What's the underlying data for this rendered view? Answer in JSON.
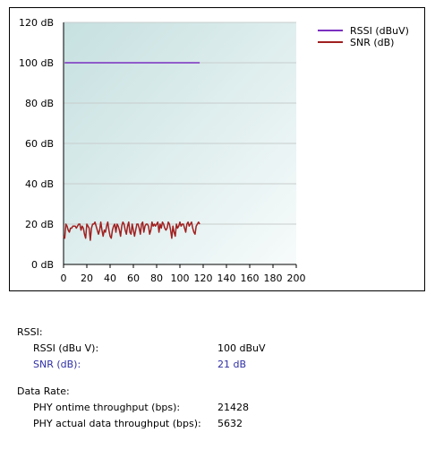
{
  "chart_data": {
    "type": "line",
    "title": "",
    "xlabel": "",
    "ylabel": "",
    "xlim": [
      0,
      200
    ],
    "ylim": [
      0,
      120
    ],
    "x_ticks": [
      "0",
      "20",
      "40",
      "60",
      "80",
      "100",
      "120",
      "140",
      "160",
      "180",
      "200"
    ],
    "y_ticks": [
      "0 dB",
      "20 dB",
      "40 dB",
      "60 dB",
      "80 dB",
      "100 dB",
      "120 dB"
    ],
    "grid": true,
    "legend_position": "top-right",
    "series": [
      {
        "name": "RSSI (dBuV)",
        "color": "#7a2fc0",
        "x": [
          1,
          117
        ],
        "y": [
          100,
          100
        ]
      },
      {
        "name": "SNR (dB)",
        "color": "#a02020",
        "x": [
          0,
          1,
          2,
          3,
          4,
          5,
          6,
          7,
          8,
          9,
          10,
          11,
          12,
          13,
          14,
          15,
          16,
          17,
          18,
          19,
          20,
          21,
          22,
          23,
          24,
          25,
          26,
          27,
          28,
          29,
          30,
          31,
          32,
          33,
          34,
          35,
          36,
          37,
          38,
          39,
          40,
          41,
          42,
          43,
          44,
          45,
          46,
          47,
          48,
          49,
          50,
          51,
          52,
          53,
          54,
          55,
          56,
          57,
          58,
          59,
          60,
          61,
          62,
          63,
          64,
          65,
          66,
          67,
          68,
          69,
          70,
          71,
          72,
          73,
          74,
          75,
          76,
          77,
          78,
          79,
          80,
          81,
          82,
          83,
          84,
          85,
          86,
          87,
          88,
          89,
          90,
          91,
          92,
          93,
          94,
          95,
          96,
          97,
          98,
          99,
          100,
          101,
          102,
          103,
          104,
          105,
          106,
          107,
          108,
          109,
          110,
          111,
          112,
          113,
          114,
          115,
          116,
          117
        ],
        "y": [
          14,
          13,
          20,
          19,
          17,
          16,
          18,
          18,
          19,
          19,
          19,
          18,
          19,
          20,
          20,
          17,
          19,
          18,
          15,
          13,
          20,
          19,
          18,
          12,
          18,
          20,
          20,
          21,
          19,
          17,
          15,
          17,
          21,
          17,
          14,
          17,
          16,
          19,
          21,
          17,
          14,
          13,
          17,
          19,
          20,
          16,
          20,
          19,
          17,
          14,
          19,
          21,
          20,
          17,
          15,
          19,
          21,
          16,
          15,
          20,
          17,
          14,
          17,
          20,
          20,
          18,
          15,
          20,
          21,
          16,
          19,
          20,
          20,
          19,
          15,
          17,
          21,
          19,
          20,
          19,
          20,
          21,
          16,
          20,
          18,
          21,
          20,
          18,
          17,
          18,
          21,
          20,
          17,
          13,
          19,
          16,
          14,
          20,
          18,
          19,
          21,
          19,
          20,
          20,
          18,
          16,
          20,
          21,
          19,
          20,
          21,
          18,
          16,
          15,
          19,
          20,
          21,
          20
        ]
      }
    ]
  },
  "colors": {
    "plot_bg_light": "#f7fbfb",
    "plot_bg_dark": "#c6e0e0",
    "grid": "#c8cccc"
  },
  "info": {
    "rssi_heading": "RSSI:",
    "rssi_label": "RSSI (dBu V):",
    "rssi_value": "100 dBuV",
    "snr_label": "SNR (dB):",
    "snr_value": "21 dB",
    "rate_heading": "Data Rate:",
    "phy_ontime_label": "PHY ontime throughput (bps):",
    "phy_ontime_value": "21428",
    "phy_actual_label": "PHY actual data throughput (bps):",
    "phy_actual_value": "5632"
  }
}
